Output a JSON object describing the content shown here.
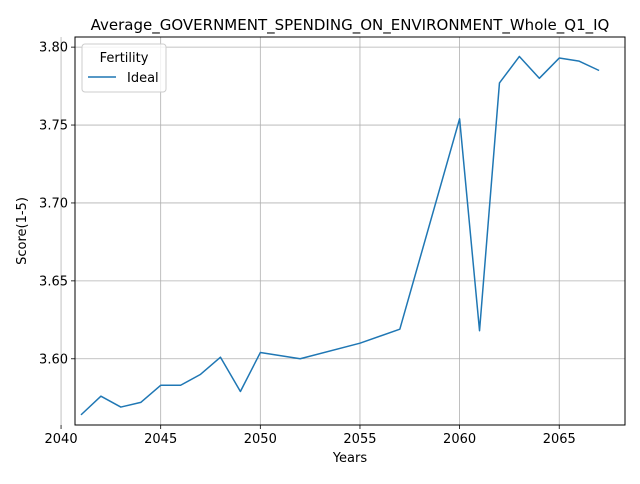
{
  "chart_data": {
    "type": "line",
    "title": "Average_GOVERNMENT_SPENDING_ON_ENVIRONMENT_Whole_Q1_IQ",
    "xlabel": "Years",
    "ylabel": "Score(1-5)",
    "xlim": [
      2040.7,
      2068.3
    ],
    "ylim": [
      3.5575,
      3.8065
    ],
    "xticks": [
      2040,
      2045,
      2050,
      2055,
      2060,
      2065
    ],
    "yticks": [
      3.6,
      3.65,
      3.7,
      3.75,
      3.8
    ],
    "xtick_labels": [
      "2040",
      "2045",
      "2050",
      "2055",
      "2060",
      "2065"
    ],
    "ytick_labels": [
      "3.60",
      "3.65",
      "3.70",
      "3.75",
      "3.80"
    ],
    "grid": true,
    "legend": {
      "title": "Fertility",
      "placement": "top-left",
      "entries": [
        "Ideal"
      ]
    },
    "series": [
      {
        "name": "Ideal",
        "color": "#1f77b4",
        "x": [
          2041,
          2042,
          2043,
          2044,
          2045,
          2046,
          2047,
          2048,
          2049,
          2050,
          2052,
          2055,
          2057,
          2060,
          2061,
          2062,
          2063,
          2064,
          2065,
          2066,
          2067
        ],
        "y": [
          3.564,
          3.576,
          3.569,
          3.572,
          3.583,
          3.583,
          3.59,
          3.601,
          3.579,
          3.604,
          3.6,
          3.61,
          3.619,
          3.754,
          3.618,
          3.777,
          3.794,
          3.78,
          3.793,
          3.791,
          3.785
        ]
      }
    ]
  }
}
